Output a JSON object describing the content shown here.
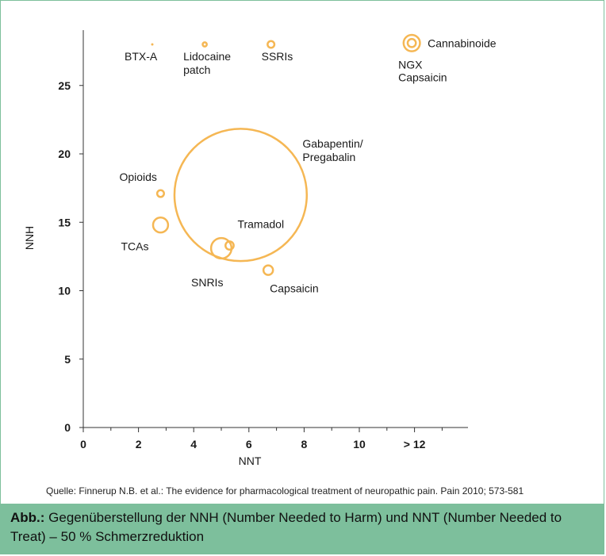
{
  "chart_data": {
    "type": "scatter",
    "title": "",
    "xlabel": "NNT",
    "ylabel": "NNH",
    "x_ticks": [
      "0",
      "2",
      "4",
      "6",
      "8",
      "10",
      "> 12"
    ],
    "y_ticks": [
      "0",
      "5",
      "10",
      "15",
      "20",
      "25"
    ],
    "xlim": [
      0,
      14
    ],
    "ylim": [
      0,
      29
    ],
    "grid": false,
    "legend": "none",
    "bubble_color": "#f5b754",
    "points": [
      {
        "label": "BTX-A",
        "nnt": 2.5,
        "nnh": 28.0,
        "size": 0.1
      },
      {
        "label": "Lidocaine patch",
        "nnt": 4.4,
        "nnh": 28.0,
        "size": 0.3
      },
      {
        "label": "SSRIs",
        "nnt": 6.8,
        "nnh": 28.0,
        "size": 0.5
      },
      {
        "label": "Cannabinoide",
        "nnt": 11.9,
        "nnh": 28.1,
        "size": 1.2
      },
      {
        "label": "NGX Capsaicin",
        "nnt": 11.9,
        "nnh": 28.1,
        "size": 0.6
      },
      {
        "label": "Gabapentin/ Pregabalin",
        "nnt": 5.7,
        "nnh": 17.0,
        "size": 9.7
      },
      {
        "label": "Opioids",
        "nnt": 2.8,
        "nnh": 17.1,
        "size": 0.5
      },
      {
        "label": "TCAs",
        "nnt": 2.8,
        "nnh": 14.8,
        "size": 1.1
      },
      {
        "label": "Tramadol",
        "nnt": 5.3,
        "nnh": 13.3,
        "size": 0.6
      },
      {
        "label": "SNRIs",
        "nnt": 5.0,
        "nnh": 13.1,
        "size": 1.5
      },
      {
        "label": "Capsaicin",
        "nnt": 6.7,
        "nnh": 11.5,
        "size": 0.7
      }
    ]
  },
  "source": "Quelle: Finnerup N.B. et al.: The evidence for pharmacological treatment of neuropathic pain. Pain 2010; 573-581",
  "caption": {
    "prefix": "Abb.:",
    "text": " Gegenüberstellung der NNH (Number Needed to Harm) und NNT (Number Needed to Treat) – 50 % Schmerzreduktion"
  }
}
